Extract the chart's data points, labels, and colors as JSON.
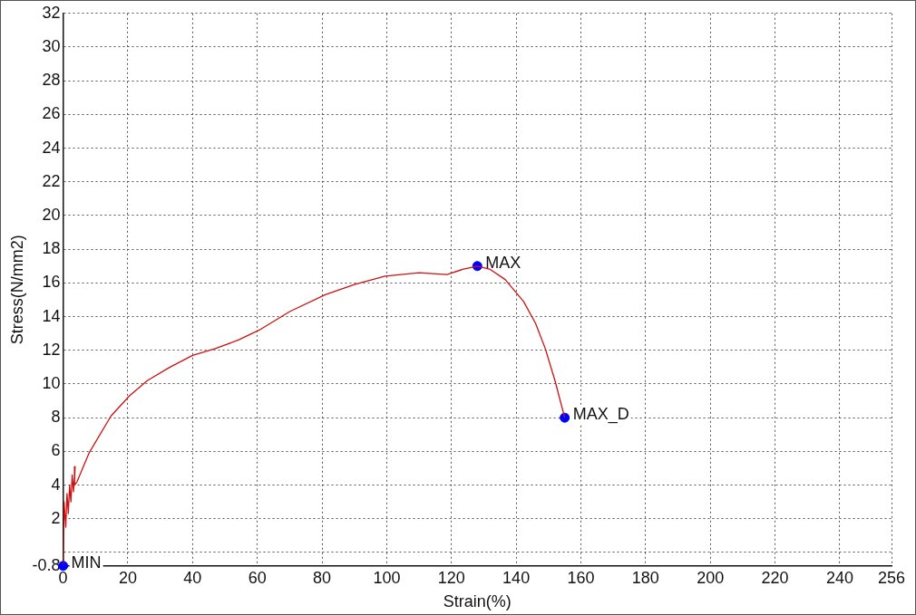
{
  "chart_data": {
    "type": "line",
    "xlabel": "Strain(%)",
    "ylabel": "Stress(N/mm2)",
    "xlim": [
      0,
      256
    ],
    "xticks": [
      0,
      20,
      40,
      60,
      80,
      100,
      120,
      140,
      160,
      180,
      200,
      220,
      240,
      256
    ],
    "ylim": [
      -0.8,
      32
    ],
    "yticks": [
      -0.8,
      {
        "value": 0,
        "label": null
      },
      2,
      4,
      6,
      8,
      10,
      12,
      14,
      16,
      18,
      20,
      22,
      24,
      26,
      28,
      30,
      32
    ],
    "grid": true,
    "legend": false,
    "marker": "none",
    "line_style": "solid",
    "series": [
      {
        "color": "#cc1111",
        "x": [
          0,
          0.3,
          0.8,
          1.2,
          1.6,
          2,
          2.4,
          2.8,
          3.2,
          3.7,
          3.5,
          4.3,
          8,
          14.8,
          20.5,
          26,
          33,
          40,
          47,
          54,
          60.6,
          70,
          81,
          90,
          99.5,
          110,
          118.6,
          123.4,
          128,
          132,
          136.6,
          142.3,
          146,
          149,
          152,
          155
        ],
        "values": [
          -0.8,
          3,
          1.5,
          3.5,
          2.3,
          4,
          3,
          4.6,
          3.6,
          5.1,
          4,
          4.2,
          5.9,
          8.1,
          9.3,
          10.2,
          11,
          11.7,
          12.1,
          12.6,
          13.2,
          14.3,
          15.3,
          15.9,
          16.4,
          16.6,
          16.5,
          16.8,
          17,
          16.8,
          16.2,
          14.9,
          13.6,
          12.1,
          10.2,
          8
        ]
      },
      {
        "type": "scatter",
        "marker": "circle",
        "color": "#0000ff",
        "x": [
          0,
          128,
          155
        ],
        "values": [
          -0.8,
          17,
          8
        ]
      }
    ],
    "annotations": [
      {
        "text": "MIN",
        "x": 0,
        "y": -0.8
      },
      {
        "text": "MAX",
        "x": 128,
        "y": 17
      },
      {
        "text": "MAX_D",
        "x": 155,
        "y": 8
      }
    ]
  }
}
